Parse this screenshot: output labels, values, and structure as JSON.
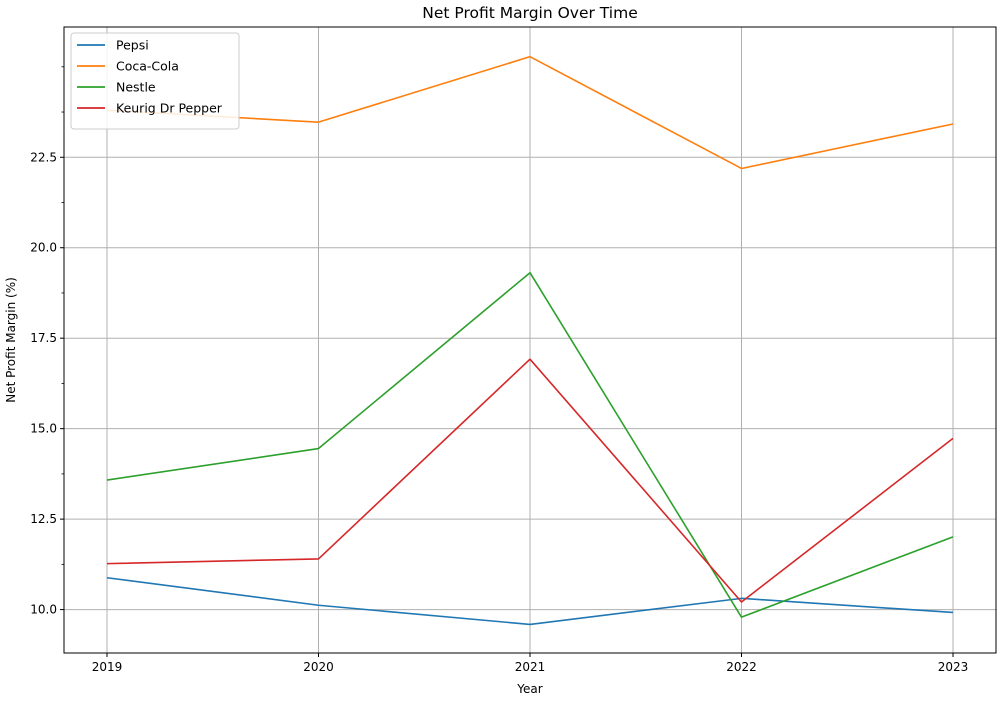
{
  "chart_data": {
    "type": "line",
    "title": "Net Profit Margin Over Time",
    "xlabel": "Year",
    "ylabel": "Net Profit Margin (%)",
    "categories": [
      "2019",
      "2020",
      "2021",
      "2022",
      "2023"
    ],
    "ylim": [
      8.8,
      26.1
    ],
    "yticks": [
      10.0,
      12.5,
      15.0,
      17.5,
      20.0,
      22.5
    ],
    "ytick_labels": [
      "10.0",
      "12.5",
      "15.0",
      "17.5",
      "20.0",
      "22.5"
    ],
    "minor_yticks": [
      11.25,
      13.75,
      16.25,
      18.75,
      21.25,
      23.75,
      25.0
    ],
    "grid": true,
    "legend_position": "top-left",
    "series": [
      {
        "name": "Pepsi",
        "color": "#1f77b4",
        "values": [
          10.88,
          10.12,
          9.59,
          10.31,
          9.92
        ]
      },
      {
        "name": "Coca-Cola",
        "color": "#ff7f0e",
        "values": [
          23.8,
          23.47,
          25.28,
          22.19,
          23.42
        ]
      },
      {
        "name": "Nestle",
        "color": "#2ca02c",
        "values": [
          13.58,
          14.45,
          19.31,
          9.79,
          12.01
        ]
      },
      {
        "name": "Keurig Dr Pepper",
        "color": "#d62728",
        "values": [
          11.27,
          11.4,
          16.92,
          10.21,
          14.73
        ]
      }
    ]
  }
}
